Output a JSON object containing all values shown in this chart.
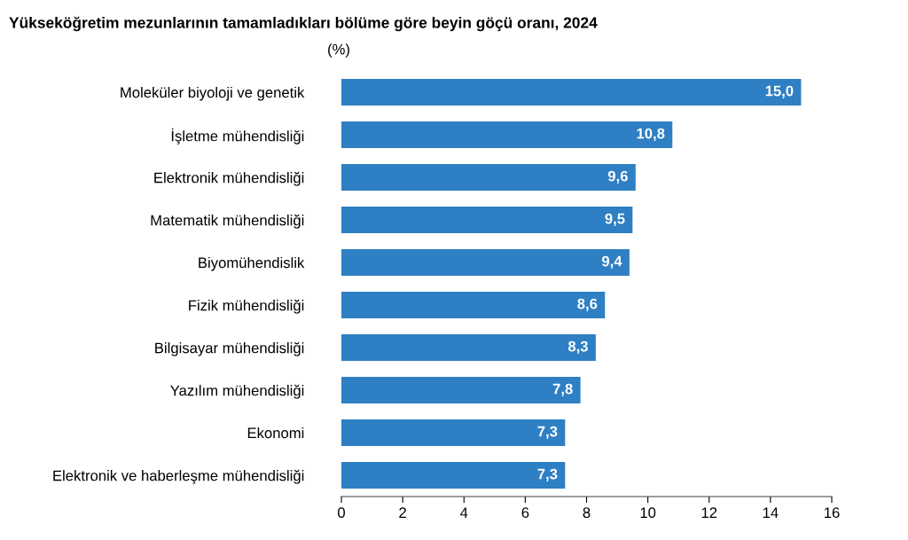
{
  "chart_data": {
    "type": "bar",
    "orientation": "horizontal",
    "title": "Yükseköğretim mezunlarının tamamladıkları bölüme göre beyin göçü oranı, 2024",
    "annotations": [
      "(%)"
    ],
    "categories": [
      "Moleküler biyoloji ve genetik",
      "İşletme mühendisliği",
      "Elektronik mühendisliği",
      "Matematik mühendisliği",
      "Biyomühendislik",
      "Fizik mühendisliği",
      "Bilgisayar mühendisliği",
      "Yazılım mühendisliği",
      "Ekonomi",
      "Elektronik ve haberleşme mühendisliği"
    ],
    "values": [
      15.0,
      10.8,
      9.6,
      9.5,
      9.4,
      8.6,
      8.3,
      7.8,
      7.3,
      7.3
    ],
    "value_labels": [
      "15,0",
      "10,8",
      "9,6",
      "9,5",
      "9,4",
      "8,6",
      "8,3",
      "7,8",
      "7,3",
      "7,3"
    ],
    "color": "#2e7fc3",
    "xlim": [
      0,
      16
    ],
    "xticks": [
      0,
      2,
      4,
      6,
      8,
      10,
      12,
      14,
      16
    ],
    "grid": false,
    "legend": false
  }
}
